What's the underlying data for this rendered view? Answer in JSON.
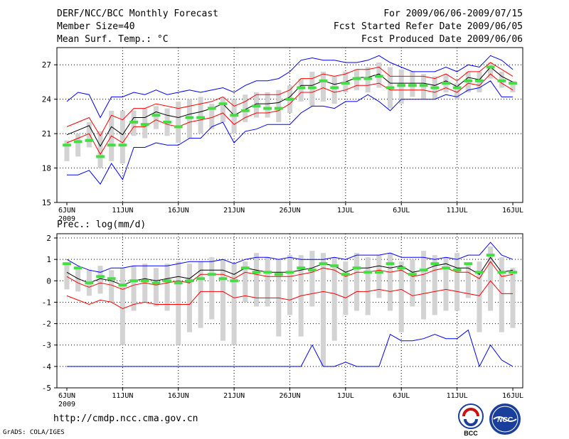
{
  "header": {
    "title": "DERF/NCC/BCC Monthly Forecast",
    "member": "Member Size=40",
    "variable": "Mean Surf. Temp.: °C",
    "period": "For 2009/06/06-2009/07/15",
    "started": "Fcst Started Refer Date 2009/06/05",
    "produced": "Fcst Produced Date 2009/06/06"
  },
  "footer": {
    "url": "http://cmdp.ncc.cma.gov.cn",
    "grads": "GrADS: COLA/IGES",
    "logo_bcc": "BCC",
    "logo_ncc": "NCC"
  },
  "chart_data": [
    {
      "type": "line",
      "title": "Mean Surf. Temp.: °C",
      "x_tick_labels": [
        "6JUN",
        "11JUN",
        "16JUN",
        "21JUN",
        "26JUN",
        "1JUL",
        "6JUL",
        "11JUL",
        "16JUL"
      ],
      "x_tick_days": [
        0,
        5,
        10,
        15,
        20,
        25,
        30,
        35,
        40
      ],
      "year_label": "2009",
      "ylim": [
        15,
        28.5
      ],
      "y_ticks": [
        15,
        18,
        21,
        24,
        27
      ],
      "days": 40,
      "series": [
        {
          "name": "ensemble-max",
          "color": "#0000ff",
          "values": [
            23.8,
            24.6,
            24.4,
            22.4,
            24.2,
            24.2,
            24.6,
            24.4,
            24.8,
            24.4,
            24.6,
            24.8,
            24.6,
            24.8,
            25.0,
            24.6,
            25.2,
            25.6,
            25.6,
            25.8,
            26.4,
            27.4,
            27.6,
            27.4,
            27.4,
            27.2,
            27.2,
            27.4,
            27.8,
            27.2,
            26.8,
            26.4,
            26.4,
            26.4,
            26.8,
            26.4,
            27.0,
            26.8,
            27.8,
            27.4,
            26.6
          ]
        },
        {
          "name": "upper-bound",
          "color": "#ff0000",
          "values": [
            21.6,
            22.0,
            22.4,
            20.8,
            22.6,
            22.2,
            23.2,
            23.2,
            23.6,
            23.4,
            23.2,
            23.4,
            23.6,
            23.8,
            24.2,
            23.4,
            23.8,
            24.4,
            24.4,
            24.4,
            24.8,
            25.8,
            25.8,
            26.2,
            26.0,
            26.2,
            26.6,
            26.6,
            26.8,
            26.0,
            26.0,
            26.0,
            26.0,
            25.8,
            26.2,
            25.6,
            26.4,
            26.4,
            27.2,
            26.6,
            26.0
          ]
        },
        {
          "name": "ensemble-mean",
          "color": "#000000",
          "values": [
            20.9,
            21.3,
            21.7,
            19.9,
            21.6,
            20.9,
            22.4,
            22.4,
            22.9,
            22.6,
            22.4,
            22.7,
            22.9,
            23.2,
            23.6,
            22.6,
            23.1,
            23.6,
            23.6,
            23.7,
            24.2,
            25.2,
            25.2,
            25.6,
            25.3,
            25.5,
            25.9,
            25.9,
            26.2,
            25.4,
            25.4,
            25.4,
            25.4,
            25.2,
            25.6,
            25.1,
            25.9,
            25.7,
            26.8,
            26.0,
            25.5
          ]
        },
        {
          "name": "lower-bound",
          "color": "#ff0000",
          "values": [
            20.2,
            20.6,
            21.0,
            19.2,
            20.8,
            20.2,
            21.6,
            21.6,
            22.2,
            21.8,
            21.6,
            22.0,
            22.2,
            22.4,
            22.8,
            21.8,
            22.4,
            22.8,
            22.8,
            23.0,
            23.6,
            24.6,
            24.6,
            25.0,
            24.6,
            24.8,
            25.2,
            25.2,
            25.4,
            24.8,
            24.8,
            24.8,
            24.8,
            24.6,
            25.0,
            24.6,
            25.4,
            25.2,
            26.2,
            25.4,
            24.8
          ]
        },
        {
          "name": "ensemble-min",
          "color": "#0000ff",
          "values": [
            17.4,
            17.4,
            17.8,
            16.6,
            18.4,
            17.0,
            19.8,
            19.8,
            20.2,
            20.0,
            20.0,
            20.6,
            20.6,
            21.6,
            22.0,
            20.2,
            21.2,
            21.4,
            21.8,
            21.8,
            21.8,
            22.8,
            23.4,
            23.4,
            23.2,
            23.8,
            23.8,
            24.4,
            23.8,
            23.0,
            24.0,
            24.0,
            24.0,
            24.0,
            24.4,
            24.2,
            24.8,
            25.0,
            25.6,
            24.2,
            24.2
          ]
        }
      ],
      "boxes": {
        "color": "#d3d3d3",
        "low": [
          18.6,
          19.0,
          19.8,
          18.0,
          18.6,
          18.4,
          20.8,
          20.6,
          21.4,
          20.8,
          20.2,
          20.6,
          21.0,
          21.4,
          22.0,
          21.0,
          22.0,
          22.4,
          22.4,
          22.0,
          22.8,
          23.8,
          23.4,
          23.8,
          23.6,
          24.6,
          24.8,
          24.6,
          25.0,
          23.2,
          23.6,
          24.2,
          24.0,
          24.0,
          24.6,
          24.0,
          24.6,
          24.6,
          25.8,
          25.0,
          24.6
        ],
        "high": [
          20.4,
          21.0,
          22.0,
          21.2,
          23.0,
          23.0,
          23.0,
          23.2,
          23.4,
          23.2,
          23.8,
          24.0,
          24.2,
          23.6,
          24.2,
          24.0,
          24.4,
          24.6,
          24.6,
          24.8,
          25.2,
          25.8,
          26.4,
          26.4,
          26.0,
          26.4,
          26.6,
          26.8,
          27.2,
          26.8,
          26.6,
          26.4,
          26.2,
          26.0,
          26.2,
          25.4,
          26.4,
          26.4,
          27.2,
          26.4,
          25.6
        ]
      },
      "markers": {
        "color": "#44dd44",
        "values": [
          20.0,
          20.3,
          20.4,
          19.0,
          20.0,
          20.0,
          22.0,
          21.8,
          22.6,
          22.0,
          21.6,
          22.4,
          22.4,
          23.2,
          23.6,
          22.6,
          23.0,
          23.4,
          23.2,
          23.2,
          24.0,
          25.0,
          25.0,
          25.6,
          25.0,
          25.4,
          25.8,
          25.8,
          26.0,
          25.0,
          25.2,
          25.2,
          25.2,
          25.0,
          25.4,
          25.0,
          25.6,
          25.6,
          26.8,
          25.6,
          25.4
        ]
      }
    },
    {
      "type": "line",
      "title": "Prec.: log(mm/d)",
      "x_tick_labels": [
        "6JUN",
        "11JUN",
        "16JUN",
        "21JUN",
        "26JUN",
        "1JUL",
        "6JUL",
        "11JUL",
        "16JUL"
      ],
      "x_tick_days": [
        0,
        5,
        10,
        15,
        20,
        25,
        30,
        35,
        40
      ],
      "year_label": "2009",
      "ylim": [
        -5,
        2.2
      ],
      "y_ticks": [
        -5,
        -4,
        -3,
        -2,
        -1,
        0,
        1,
        2
      ],
      "days": 40,
      "series": [
        {
          "name": "ensemble-max",
          "color": "#0000ff",
          "values": [
            1.0,
            0.7,
            0.5,
            0.4,
            0.6,
            0.6,
            0.7,
            0.7,
            0.7,
            0.7,
            0.8,
            0.9,
            0.9,
            0.9,
            1.0,
            0.8,
            1.0,
            1.1,
            1.1,
            1.0,
            1.1,
            1.0,
            1.0,
            1.0,
            1.1,
            1.0,
            1.2,
            1.2,
            1.2,
            1.3,
            1.1,
            1.1,
            1.1,
            1.0,
            1.1,
            1.0,
            1.2,
            1.2,
            1.8,
            1.2,
            1.0
          ]
        },
        {
          "name": "upper-bound",
          "color": "#ff0000",
          "values": [
            0.2,
            -0.1,
            -0.3,
            -0.1,
            -0.2,
            -0.4,
            -0.2,
            -0.1,
            -0.2,
            -0.1,
            0.0,
            -0.1,
            0.3,
            0.3,
            0.3,
            0.1,
            0.4,
            0.3,
            0.2,
            0.2,
            0.2,
            0.3,
            0.4,
            0.6,
            0.5,
            0.2,
            0.4,
            0.4,
            0.5,
            0.4,
            0.5,
            0.2,
            0.3,
            0.5,
            0.6,
            0.4,
            0.4,
            0.1,
            0.9,
            0.2,
            0.3
          ]
        },
        {
          "name": "ensemble-mean",
          "color": "#000000",
          "values": [
            0.4,
            0.1,
            -0.1,
            0.1,
            0.0,
            -0.2,
            0.0,
            0.1,
            0.0,
            0.1,
            0.2,
            0.1,
            0.5,
            0.5,
            0.5,
            0.3,
            0.6,
            0.5,
            0.4,
            0.4,
            0.4,
            0.5,
            0.6,
            0.8,
            0.7,
            0.4,
            0.6,
            0.6,
            0.7,
            0.6,
            0.7,
            0.4,
            0.5,
            0.7,
            0.8,
            0.6,
            0.6,
            0.3,
            1.1,
            0.4,
            0.5
          ]
        },
        {
          "name": "lower-bound",
          "color": "#ff0000",
          "values": [
            -0.7,
            -0.9,
            -1.1,
            -0.9,
            -1.0,
            -1.3,
            -1.1,
            -1.0,
            -1.1,
            -1.1,
            -1.1,
            -1.1,
            -0.5,
            -0.5,
            -0.5,
            -0.8,
            -0.7,
            -0.8,
            -0.8,
            -0.8,
            -0.9,
            -0.7,
            -0.6,
            -0.5,
            -0.6,
            -0.8,
            -0.5,
            -0.5,
            -0.4,
            -0.5,
            -0.4,
            -0.7,
            -0.6,
            -0.5,
            -0.4,
            -0.5,
            -0.6,
            -0.7,
            0.0,
            -0.6,
            -0.6
          ]
        },
        {
          "name": "ensemble-min",
          "color": "#0000ff",
          "values": [
            -4,
            -4,
            -4,
            -4,
            -4,
            -4,
            -4,
            -4,
            -4,
            -4,
            -4,
            -4,
            -4,
            -4,
            -4,
            -4,
            -4,
            -4,
            -4,
            -4,
            -4,
            -4,
            -3.0,
            -4,
            -4,
            -3.8,
            -4,
            -4,
            -4,
            -2.5,
            -2.8,
            -2.8,
            -2.7,
            -2.5,
            -2.7,
            -2.7,
            -2.3,
            -4,
            -3.0,
            -3.7,
            -4
          ]
        }
      ],
      "boxes": {
        "color": "#d3d3d3",
        "low": [
          -0.4,
          -0.5,
          -0.7,
          -0.6,
          -1.0,
          -3.0,
          -1.4,
          -1.0,
          -1.2,
          -1.4,
          -3.0,
          -2.4,
          -2.2,
          -1.8,
          -2.8,
          -3.0,
          -1.0,
          -1.2,
          -1.2,
          -2.6,
          -1.6,
          -2.6,
          -1.2,
          -4.0,
          -2.8,
          -1.6,
          -1.4,
          -1.6,
          -0.8,
          -1.4,
          -2.4,
          -1.2,
          -1.8,
          -1.6,
          -1.4,
          -1.4,
          -0.8,
          -2.4,
          -1.4,
          -2.4,
          -2.2
        ],
        "high": [
          0.8,
          0.6,
          0.5,
          0.7,
          0.5,
          0.6,
          0.7,
          0.8,
          0.6,
          0.8,
          0.9,
          0.8,
          0.9,
          1.1,
          1.0,
          0.8,
          0.9,
          1.3,
          1.1,
          1.0,
          1.2,
          1.2,
          1.4,
          1.3,
          1.1,
          0.9,
          1.3,
          1.1,
          1.2,
          1.3,
          0.9,
          1.0,
          1.4,
          1.2,
          1.1,
          1.3,
          0.8,
          0.9,
          1.6,
          1.1,
          0.6
        ]
      },
      "markers": {
        "color": "#44dd44",
        "values": [
          0.8,
          0.6,
          -0.1,
          0.2,
          0.1,
          -0.2,
          0.0,
          0.0,
          -0.1,
          0.0,
          -0.1,
          0.0,
          0.1,
          0.3,
          0.1,
          0.0,
          0.6,
          0.4,
          0.4,
          0.3,
          0.4,
          0.6,
          0.5,
          0.8,
          0.7,
          0.3,
          0.6,
          0.4,
          0.4,
          0.8,
          0.6,
          0.3,
          0.5,
          0.8,
          0.6,
          0.5,
          0.8,
          0.4,
          1.2,
          0.4,
          0.4
        ]
      }
    }
  ]
}
